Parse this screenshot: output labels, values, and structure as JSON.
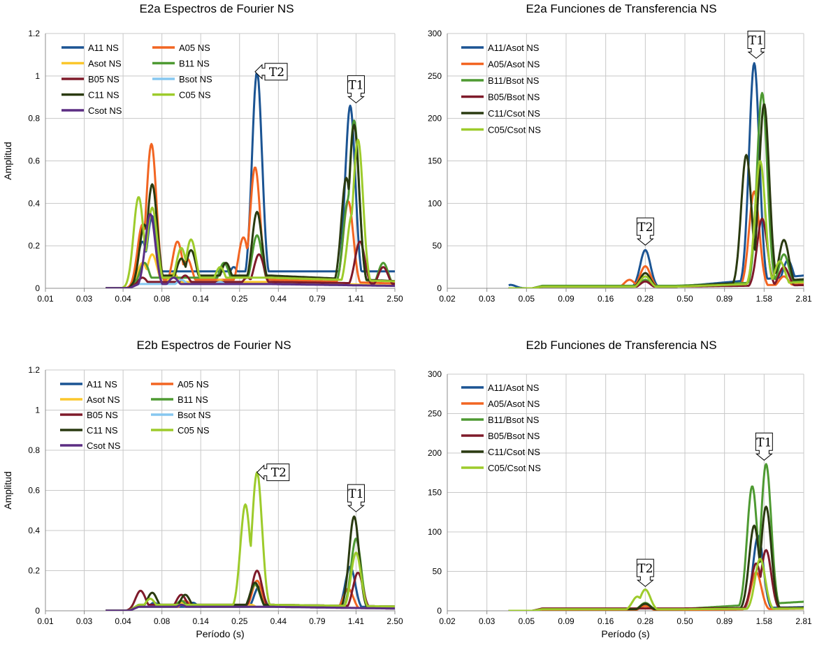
{
  "colors": {
    "A11": "#1b5493",
    "A05": "#f26522",
    "Asot": "#fbc72c",
    "B11": "#4e9a32",
    "B05": "#7e1a2a",
    "Bsot": "#86c7f0",
    "C11": "#2a3a10",
    "C05": "#9dcb2b",
    "Csot": "#5b2d83"
  },
  "chart_data": [
    {
      "id": "fa",
      "type": "line",
      "title": "E2a Espectros de Fourier NS",
      "ylabel": "Amplitud",
      "xlabel": "",
      "ylim": [
        0,
        1.2
      ],
      "yticks": [
        "0",
        "0.2",
        "0.4",
        "0.6",
        "0.8",
        "1",
        "1.2"
      ],
      "xticks": [
        "0.01",
        "0.03",
        "0.04",
        "0.08",
        "0.14",
        "0.25",
        "0.44",
        "0.79",
        "1.41",
        "2.50"
      ],
      "x_scale": "log-spaced tick categories",
      "callouts": [
        {
          "text": "T2",
          "dir": "left",
          "x_tick": 5.4,
          "y": 1.02
        },
        {
          "text": "T1",
          "dir": "down",
          "x_tick": 8.0,
          "y": 0.87
        }
      ],
      "series": [
        {
          "name": "A11 NS",
          "key": "A11",
          "peaks": [
            [
              2.5,
              0.22
            ],
            [
              2.75,
              0.34
            ],
            [
              4.85,
              0.1
            ],
            [
              5.45,
              1.02
            ],
            [
              6.7,
              0.07
            ],
            [
              7.85,
              0.86
            ]
          ],
          "base": 0.08,
          "tail": 0.08
        },
        {
          "name": "A05 NS",
          "key": "A05",
          "peaks": [
            [
              2.5,
              0.3
            ],
            [
              2.73,
              0.68
            ],
            [
              3.4,
              0.22
            ],
            [
              3.65,
              0.14
            ],
            [
              5.1,
              0.24
            ],
            [
              5.4,
              0.57
            ],
            [
              7.8,
              0.41
            ]
          ],
          "base": 0.04,
          "tail": 0.02
        },
        {
          "name": "Asot NS",
          "key": "Asot",
          "peaks": [
            [
              2.5,
              0.12
            ],
            [
              2.75,
              0.16
            ],
            [
              3.3,
              0.07
            ],
            [
              4.5,
              0.04
            ]
          ],
          "base": 0.03,
          "tail": 0.01
        },
        {
          "name": "B11 NS",
          "key": "B11",
          "peaks": [
            [
              2.55,
              0.12
            ],
            [
              4.6,
              0.12
            ],
            [
              5.45,
              0.25
            ],
            [
              7.8,
              0.42
            ],
            [
              7.95,
              0.79
            ],
            [
              8.7,
              0.12
            ]
          ],
          "base": 0.05,
          "tail": 0.03
        },
        {
          "name": "B05 NS",
          "key": "B05",
          "peaks": [
            [
              2.5,
              0.05
            ],
            [
              3.6,
              0.06
            ],
            [
              5.2,
              0.05
            ],
            [
              5.5,
              0.16
            ],
            [
              8.1,
              0.22
            ],
            [
              8.7,
              0.1
            ]
          ],
          "base": 0.03,
          "tail": 0.02
        },
        {
          "name": "Bsot NS",
          "key": "Bsot",
          "peaks": [
            [
              3.5,
              0.04
            ],
            [
              4.5,
              0.03
            ]
          ],
          "base": 0.02,
          "tail": 0.01
        },
        {
          "name": "C11 NS",
          "key": "C11",
          "peaks": [
            [
              2.55,
              0.3
            ],
            [
              2.75,
              0.49
            ],
            [
              3.5,
              0.14
            ],
            [
              3.75,
              0.18
            ],
            [
              4.65,
              0.12
            ],
            [
              5.45,
              0.36
            ],
            [
              7.75,
              0.52
            ],
            [
              7.95,
              0.77
            ]
          ],
          "base": 0.06,
          "tail": 0.03
        },
        {
          "name": "C05 NS",
          "key": "C05",
          "peaks": [
            [
              2.4,
              0.43
            ],
            [
              2.75,
              0.38
            ],
            [
              3.5,
              0.19
            ],
            [
              3.75,
              0.23
            ],
            [
              4.5,
              0.1
            ],
            [
              7.9,
              0.35
            ],
            [
              8.05,
              0.7
            ]
          ],
          "base": 0.05,
          "tail": 0.03
        },
        {
          "name": "Csot NS",
          "key": "Csot",
          "peaks": [
            [
              2.7,
              0.35
            ],
            [
              3.3,
              0.05
            ]
          ],
          "base": 0.02,
          "tail": 0.01
        }
      ]
    },
    {
      "id": "ta",
      "type": "line",
      "title": "E2a Funciones de Transferencia NS",
      "ylabel": "",
      "xlabel": "",
      "ylim": [
        0,
        300
      ],
      "yticks": [
        "0",
        "50",
        "100",
        "150",
        "200",
        "250",
        "300"
      ],
      "xticks": [
        "0.02",
        "0.03",
        "0.05",
        "0.09",
        "0.16",
        "0.28",
        "0.50",
        "0.89",
        "1.58",
        "2.81"
      ],
      "x_scale": "log-spaced tick categories",
      "callouts": [
        {
          "text": "T2",
          "dir": "down",
          "x_tick": 5.0,
          "y": 50
        },
        {
          "text": "T1",
          "dir": "down",
          "x_tick": 7.8,
          "y": 270
        }
      ],
      "series": [
        {
          "name": "A11/Asot NS",
          "key": "A11",
          "peaks": [
            [
              1.6,
              4
            ],
            [
              5.0,
              45
            ],
            [
              7.75,
              265
            ],
            [
              8.6,
              33
            ]
          ],
          "base": 2,
          "tail": 17
        },
        {
          "name": "A05/Asot NS",
          "key": "A05",
          "peaks": [
            [
              4.6,
              10
            ],
            [
              5.0,
              26
            ],
            [
              7.75,
              114
            ],
            [
              8.5,
              14
            ]
          ],
          "base": 2,
          "tail": 5
        },
        {
          "name": "B11/Bsot NS",
          "key": "B11",
          "peaks": [
            [
              1.0,
              6
            ],
            [
              5.0,
              10
            ],
            [
              7.95,
              230
            ],
            [
              8.5,
              40
            ]
          ],
          "base": 3,
          "tail": 10
        },
        {
          "name": "B05/Bsot NS",
          "key": "B05",
          "peaks": [
            [
              5.0,
              8
            ],
            [
              7.95,
              82
            ],
            [
              8.5,
              25
            ]
          ],
          "base": 2,
          "tail": 4
        },
        {
          "name": "C11/Csot NS",
          "key": "C11",
          "peaks": [
            [
              5.0,
              18
            ],
            [
              7.55,
              157
            ],
            [
              8.0,
              217
            ],
            [
              8.5,
              57
            ]
          ],
          "base": 2,
          "tail": 12
        },
        {
          "name": "C05/Csot NS",
          "key": "C05",
          "peaks": [
            [
              5.0,
              14
            ],
            [
              7.9,
              150
            ],
            [
              8.4,
              32
            ]
          ],
          "base": 2,
          "tail": 8
        }
      ]
    },
    {
      "id": "fb",
      "type": "line",
      "title": "E2b Espectros de Fourier NS",
      "ylabel": "Amplitud",
      "xlabel": "Período (s)",
      "ylim": [
        0,
        1.2
      ],
      "yticks": [
        "0",
        "0.2",
        "0.4",
        "0.6",
        "0.8",
        "1",
        "1.2"
      ],
      "xticks": [
        "0.01",
        "0.03",
        "0.04",
        "0.08",
        "0.14",
        "0.25",
        "0.44",
        "0.79",
        "1.41",
        "2.50"
      ],
      "x_scale": "log-spaced tick categories",
      "callouts": [
        {
          "text": "T2",
          "dir": "left",
          "x_tick": 5.45,
          "y": 0.69
        },
        {
          "text": "T1",
          "dir": "down",
          "x_tick": 8.0,
          "y": 0.49
        }
      ],
      "series": [
        {
          "name": "A11 NS",
          "key": "A11",
          "peaks": [
            [
              2.8,
              0.04
            ],
            [
              3.8,
              0.04
            ],
            [
              5.5,
              0.12
            ],
            [
              7.85,
              0.22
            ]
          ],
          "base": 0.02,
          "tail": 0.02
        },
        {
          "name": "A05 NS",
          "key": "A05",
          "peaks": [
            [
              3.6,
              0.05
            ],
            [
              5.45,
              0.15
            ],
            [
              7.8,
              0.11
            ]
          ],
          "base": 0.02,
          "tail": 0.01
        },
        {
          "name": "Asot NS",
          "key": "Asot",
          "peaks": [
            [
              3.5,
              0.04
            ],
            [
              5.3,
              0.03
            ]
          ],
          "base": 0.02,
          "tail": 0.01
        },
        {
          "name": "B11 NS",
          "key": "B11",
          "peaks": [
            [
              3.5,
              0.05
            ],
            [
              5.4,
              0.13
            ],
            [
              8.0,
              0.36
            ]
          ],
          "base": 0.02,
          "tail": 0.02
        },
        {
          "name": "B05 NS",
          "key": "B05",
          "peaks": [
            [
              2.45,
              0.1
            ],
            [
              3.5,
              0.08
            ],
            [
              5.45,
              0.2
            ],
            [
              8.05,
              0.19
            ]
          ],
          "base": 0.03,
          "tail": 0.02
        },
        {
          "name": "Bsot NS",
          "key": "Bsot",
          "peaks": [
            [
              3.5,
              0.03
            ]
          ],
          "base": 0.02,
          "tail": 0.01
        },
        {
          "name": "C11 NS",
          "key": "C11",
          "peaks": [
            [
              2.75,
              0.09
            ],
            [
              3.6,
              0.08
            ],
            [
              5.4,
              0.14
            ],
            [
              7.95,
              0.47
            ]
          ],
          "base": 0.03,
          "tail": 0.02
        },
        {
          "name": "C05 NS",
          "key": "C05",
          "peaks": [
            [
              2.7,
              0.06
            ],
            [
              5.15,
              0.53
            ],
            [
              5.45,
              0.69
            ],
            [
              8.0,
              0.29
            ]
          ],
          "base": 0.03,
          "tail": 0.02
        },
        {
          "name": "Csot NS",
          "key": "Csot",
          "peaks": [
            [
              3.5,
              0.03
            ]
          ],
          "base": 0.02,
          "tail": 0.01
        }
      ]
    },
    {
      "id": "tb",
      "type": "line",
      "title": "E2b Funciones de Transferencia NS",
      "ylabel": "",
      "xlabel": "Período (s)",
      "ylim": [
        0,
        300
      ],
      "yticks": [
        "0",
        "50",
        "100",
        "150",
        "200",
        "250",
        "300"
      ],
      "xticks": [
        "0.02",
        "0.03",
        "0.05",
        "0.09",
        "0.16",
        "0.28",
        "0.50",
        "0.89",
        "1.58",
        "2.81"
      ],
      "x_scale": "log-spaced tick categories",
      "callouts": [
        {
          "text": "T2",
          "dir": "down",
          "x_tick": 5.0,
          "y": 30
        },
        {
          "text": "T1",
          "dir": "down",
          "x_tick": 8.0,
          "y": 190
        }
      ],
      "series": [
        {
          "name": "A11/Asot NS",
          "key": "A11",
          "peaks": [
            [
              5.0,
              8
            ],
            [
              7.85,
              95
            ]
          ],
          "base": 2,
          "tail": 5
        },
        {
          "name": "A05/Asot NS",
          "key": "A05",
          "peaks": [
            [
              5.0,
              6
            ],
            [
              7.8,
              49
            ]
          ],
          "base": 1,
          "tail": 3
        },
        {
          "name": "B11/Bsot NS",
          "key": "B11",
          "peaks": [
            [
              5.0,
              10
            ],
            [
              7.7,
              158
            ],
            [
              8.05,
              186
            ]
          ],
          "base": 2,
          "tail": 13
        },
        {
          "name": "B05/Bsot NS",
          "key": "B05",
          "peaks": [
            [
              0.7,
              14
            ],
            [
              7.8,
              60
            ],
            [
              8.05,
              77
            ]
          ],
          "base": 3,
          "tail": 4
        },
        {
          "name": "C11/Csot NS",
          "key": "C11",
          "peaks": [
            [
              5.0,
              9
            ],
            [
              7.75,
              108
            ],
            [
              8.05,
              132
            ]
          ],
          "base": 2,
          "tail": 4
        },
        {
          "name": "C05/Csot NS",
          "key": "C05",
          "peaks": [
            [
              4.8,
              18
            ],
            [
              5.0,
              27
            ],
            [
              7.9,
              66
            ]
          ],
          "base": 2,
          "tail": 3
        }
      ]
    }
  ]
}
